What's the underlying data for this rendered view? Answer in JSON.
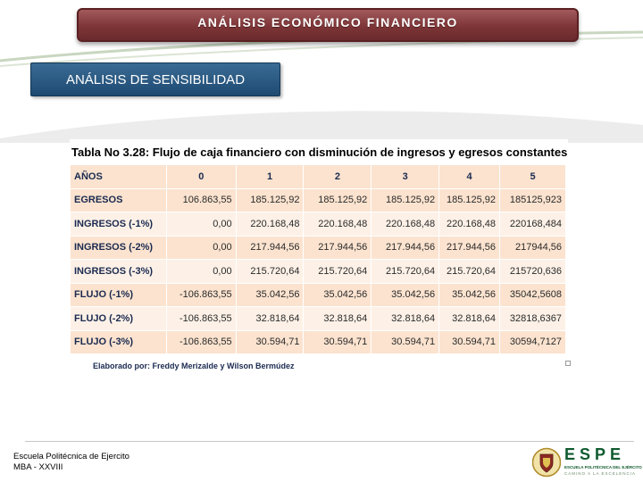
{
  "header": {
    "title": "ANÁLISIS ECONÓMICO FINANCIERO"
  },
  "section": {
    "subtitle": "ANÁLISIS DE SENSIBILIDAD"
  },
  "table": {
    "title": "Tabla No 3.28: Flujo de caja financiero con disminución de ingresos y egresos constantes",
    "columns": [
      "AÑOS",
      "0",
      "1",
      "2",
      "3",
      "4",
      "5"
    ],
    "rows": [
      {
        "label": "EGRESOS",
        "cells": [
          "106.863,55",
          "185.125,92",
          "185.125,92",
          "185.125,92",
          "185.125,92",
          "185125,923"
        ]
      },
      {
        "label": "INGRESOS  (-1%)",
        "cells": [
          "0,00",
          "220.168,48",
          "220.168,48",
          "220.168,48",
          "220.168,48",
          "220168,484"
        ]
      },
      {
        "label": "INGRESOS  (-2%)",
        "cells": [
          "0,00",
          "217.944,56",
          "217.944,56",
          "217.944,56",
          "217.944,56",
          "217944,56"
        ]
      },
      {
        "label": "INGRESOS  (-3%)",
        "cells": [
          "0,00",
          "215.720,64",
          "215.720,64",
          "215.720,64",
          "215.720,64",
          "215720,636"
        ]
      },
      {
        "label": "FLUJO (-1%)",
        "cells": [
          "-106.863,55",
          "35.042,56",
          "35.042,56",
          "35.042,56",
          "35.042,56",
          "35042,5608"
        ]
      },
      {
        "label": "FLUJO (-2%)",
        "cells": [
          "-106.863,55",
          "32.818,64",
          "32.818,64",
          "32.818,64",
          "32.818,64",
          "32818,6367"
        ]
      },
      {
        "label": "FLUJO (-3%)",
        "cells": [
          "-106.863,55",
          "30.594,71",
          "30.594,71",
          "30.594,71",
          "30.594,71",
          "30594,7127"
        ]
      }
    ],
    "source": "Elaborado por: Freddy Merizalde y Wilson Bermúdez"
  },
  "footer": {
    "line1": "Escuela Politécnica de Ejercito",
    "line2": "MBA - XXVIII"
  },
  "logo": {
    "word": "ESPE",
    "sub": "ESCUELA POLITÉCNICA DEL EJÉRCITO",
    "sub2": "CAMINO A LA EXCELENCIA"
  },
  "colors": {
    "banner": "#7e3537",
    "subtitle_box": "#2a5a84",
    "table_band": "#fbe3cf",
    "table_plain": "#fdf1e7",
    "logo_green": "#0f5a2e"
  }
}
